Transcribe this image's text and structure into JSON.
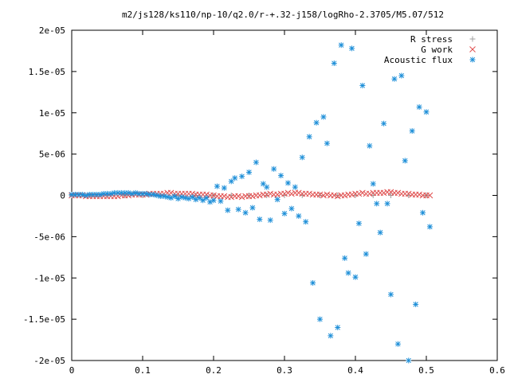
{
  "chart_data": {
    "type": "scatter",
    "title": "m2/js128/ks110/np-10/q2.0/r-+.32-j158/logRho-2.3705/M5.07/512",
    "xlabel": "",
    "ylabel": "",
    "xlim": [
      0,
      0.6
    ],
    "ylim": [
      -2e-05,
      2e-05
    ],
    "x_ticks": [
      0,
      0.1,
      0.2,
      0.3,
      0.4,
      0.5,
      0.6
    ],
    "x_tick_labels": [
      "0",
      "0.1",
      "0.2",
      "0.3",
      "0.4",
      "0.5",
      "0.6"
    ],
    "y_ticks": [
      -2e-05,
      -1.5e-05,
      -1e-05,
      -5e-06,
      0,
      5e-06,
      1e-05,
      1.5e-05,
      2e-05
    ],
    "y_tick_labels": [
      "-2e-05",
      "-1.5e-05",
      "-1e-05",
      "-5e-06",
      "0",
      "5e-06",
      "1e-05",
      "1.5e-05",
      "2e-05"
    ],
    "grid": false,
    "legend_position": "top-right",
    "series": [
      {
        "name": "R stress",
        "marker": "plus",
        "color": "#a0a0a0",
        "x": [
          0.0,
          0.025,
          0.05,
          0.075,
          0.1,
          0.125,
          0.15,
          0.175,
          0.2,
          0.225,
          0.25,
          0.275,
          0.3,
          0.325,
          0.35,
          0.375,
          0.4,
          0.425,
          0.45,
          0.475,
          0.5
        ],
        "y": [
          0,
          0,
          0,
          0,
          0,
          0,
          0,
          0,
          0,
          0,
          0,
          0,
          0,
          0,
          0,
          0,
          0,
          0,
          0,
          0,
          0
        ]
      },
      {
        "name": "G work",
        "marker": "cross",
        "color": "#e05050",
        "x": [
          0.0,
          0.005,
          0.01,
          0.015,
          0.02,
          0.025,
          0.03,
          0.035,
          0.04,
          0.045,
          0.05,
          0.055,
          0.06,
          0.065,
          0.07,
          0.075,
          0.08,
          0.085,
          0.09,
          0.095,
          0.1,
          0.105,
          0.11,
          0.115,
          0.12,
          0.125,
          0.13,
          0.135,
          0.14,
          0.145,
          0.15,
          0.155,
          0.16,
          0.165,
          0.17,
          0.175,
          0.18,
          0.185,
          0.19,
          0.195,
          0.2,
          0.205,
          0.21,
          0.215,
          0.22,
          0.225,
          0.23,
          0.235,
          0.24,
          0.245,
          0.25,
          0.255,
          0.26,
          0.265,
          0.27,
          0.275,
          0.28,
          0.285,
          0.29,
          0.295,
          0.3,
          0.305,
          0.31,
          0.315,
          0.32,
          0.325,
          0.33,
          0.335,
          0.34,
          0.345,
          0.35,
          0.355,
          0.36,
          0.365,
          0.37,
          0.375,
          0.38,
          0.385,
          0.39,
          0.395,
          0.4,
          0.405,
          0.41,
          0.415,
          0.42,
          0.425,
          0.43,
          0.435,
          0.44,
          0.445,
          0.45,
          0.455,
          0.46,
          0.465,
          0.47,
          0.475,
          0.48,
          0.485,
          0.49,
          0.495,
          0.5,
          0.505
        ],
        "y": [
          0,
          0,
          0,
          0,
          -1e-07,
          -1e-07,
          -1e-07,
          -1e-07,
          -1e-07,
          -1e-07,
          -1e-07,
          -1e-07,
          -1e-07,
          -1e-07,
          0,
          0,
          0,
          1e-07,
          1e-07,
          1e-07,
          1e-07,
          1e-07,
          2e-07,
          2e-07,
          2e-07,
          2e-07,
          2e-07,
          3e-07,
          3e-07,
          2e-07,
          2e-07,
          2e-07,
          2e-07,
          2e-07,
          2e-07,
          1e-07,
          1e-07,
          1e-07,
          1e-07,
          0,
          0,
          -1e-07,
          -1e-07,
          -1e-07,
          -2e-07,
          -2e-07,
          -1e-07,
          -1e-07,
          -2e-07,
          -1e-07,
          -1e-07,
          -1e-07,
          0,
          0,
          1e-07,
          1e-07,
          2e-07,
          1e-07,
          1e-07,
          2e-07,
          2e-07,
          3e-07,
          2e-07,
          3e-07,
          3e-07,
          2e-07,
          2e-07,
          2e-07,
          1e-07,
          1e-07,
          1e-07,
          0,
          1e-07,
          0,
          0,
          -1e-07,
          0,
          0,
          1e-07,
          1e-07,
          2e-07,
          2e-07,
          3e-07,
          2e-07,
          2e-07,
          3e-07,
          3e-07,
          3e-07,
          3e-07,
          4e-07,
          4e-07,
          3e-07,
          3e-07,
          2e-07,
          2e-07,
          2e-07,
          1e-07,
          1e-07,
          1e-07,
          0,
          0,
          0
        ]
      },
      {
        "name": "Acoustic flux",
        "marker": "star",
        "color": "#1e8fd8",
        "x": [
          0.0,
          0.005,
          0.01,
          0.015,
          0.02,
          0.025,
          0.03,
          0.035,
          0.04,
          0.045,
          0.05,
          0.055,
          0.06,
          0.065,
          0.07,
          0.075,
          0.08,
          0.085,
          0.09,
          0.095,
          0.1,
          0.105,
          0.11,
          0.115,
          0.12,
          0.125,
          0.13,
          0.135,
          0.14,
          0.145,
          0.15,
          0.155,
          0.16,
          0.165,
          0.17,
          0.175,
          0.18,
          0.185,
          0.19,
          0.195,
          0.2,
          0.205,
          0.21,
          0.215,
          0.22,
          0.225,
          0.23,
          0.235,
          0.24,
          0.245,
          0.25,
          0.255,
          0.26,
          0.265,
          0.27,
          0.275,
          0.28,
          0.285,
          0.29,
          0.295,
          0.3,
          0.305,
          0.31,
          0.315,
          0.32,
          0.325,
          0.33,
          0.335,
          0.34,
          0.345,
          0.35,
          0.355,
          0.36,
          0.365,
          0.37,
          0.375,
          0.38,
          0.385,
          0.39,
          0.395,
          0.4,
          0.405,
          0.41,
          0.415,
          0.42,
          0.425,
          0.43,
          0.435,
          0.44,
          0.445,
          0.45,
          0.455,
          0.46,
          0.465,
          0.47,
          0.475,
          0.48,
          0.485,
          0.49,
          0.495,
          0.5,
          0.505
        ],
        "y": [
          1e-07,
          1e-07,
          1e-07,
          1e-07,
          0,
          1e-07,
          1e-07,
          1e-07,
          1e-07,
          2e-07,
          2e-07,
          2e-07,
          3e-07,
          3e-07,
          3e-07,
          3e-07,
          3e-07,
          2e-07,
          3e-07,
          2e-07,
          2e-07,
          2e-07,
          1e-07,
          1e-07,
          0,
          -1e-07,
          -1e-07,
          -2e-07,
          -3e-07,
          -1e-07,
          -4e-07,
          -2e-07,
          -3e-07,
          -4e-07,
          -2e-07,
          -5e-07,
          -3e-07,
          -6e-07,
          -3e-07,
          -8e-07,
          -6e-07,
          1.1e-06,
          -7e-07,
          9e-07,
          -1.8e-06,
          1.7e-06,
          2.1e-06,
          -1.7e-06,
          2.3e-06,
          -2.1e-06,
          2.8e-06,
          -1.5e-06,
          4e-06,
          -2.9e-06,
          1.4e-06,
          1e-06,
          -3e-06,
          3.2e-06,
          -5e-07,
          2.4e-06,
          -2.2e-06,
          1.5e-06,
          -1.6e-06,
          1e-06,
          -2.5e-06,
          4.6e-06,
          -3.2e-06,
          7.1e-06,
          -1.06e-05,
          8.8e-06,
          -1.5e-05,
          9.5e-06,
          6.3e-06,
          -1.7e-05,
          1.6e-05,
          -1.6e-05,
          1.82e-05,
          -7.6e-06,
          -9.4e-06,
          1.78e-05,
          -9.9e-06,
          -3.4e-06,
          1.33e-05,
          -7.1e-06,
          6e-06,
          1.4e-06,
          -1e-06,
          -4.5e-06,
          8.7e-06,
          -1e-06,
          -1.2e-05,
          1.41e-05,
          -1.8e-05,
          1.45e-05,
          4.2e-06,
          -2e-05,
          7.8e-06,
          -1.32e-05,
          1.07e-05,
          -2.1e-06,
          1.01e-05,
          -3.8e-06
        ]
      }
    ]
  }
}
